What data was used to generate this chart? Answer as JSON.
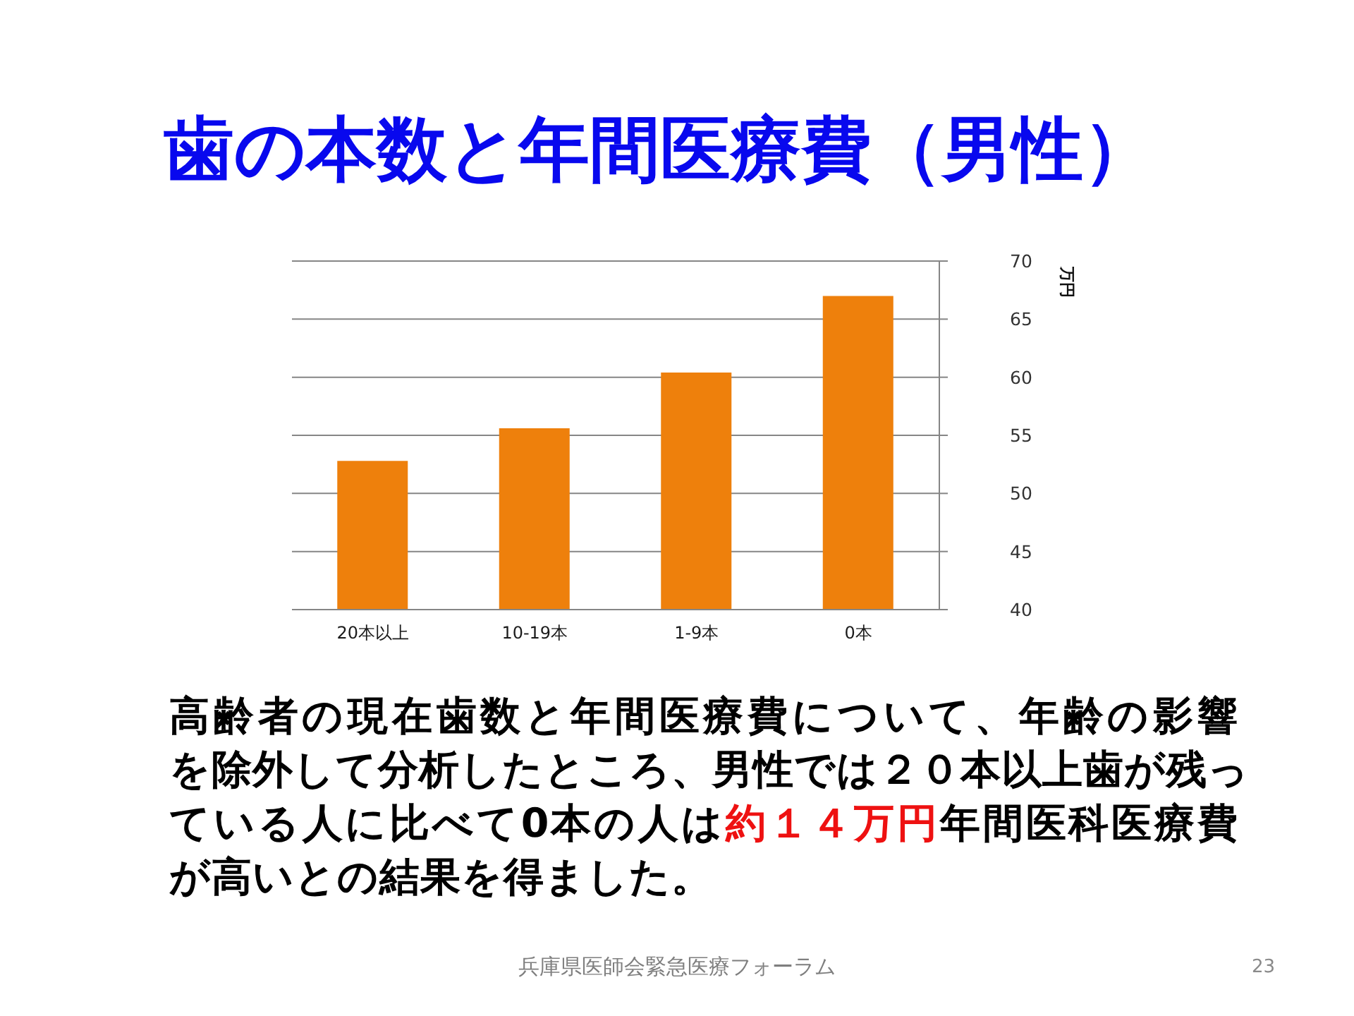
{
  "chart_data": {
    "type": "bar",
    "title": "歯の本数と年間医療費（男性）",
    "ylabel": "万円",
    "categories": [
      "20本以上",
      "10-19本",
      "1-9本",
      "0本"
    ],
    "values": [
      52.8,
      55.6,
      60.4,
      67.0
    ],
    "color": "#ee800c",
    "ylim": [
      40,
      70
    ],
    "yticks": [
      40,
      45,
      50,
      55,
      60,
      65,
      70
    ],
    "grid": "y",
    "annotations": [
      "高齢者の現在歯数と年間医療費について、年齢の影響",
      "を除外して分析したところ、男性では２０本以上歯が残っ",
      "ている人に比べて0本の人は",
      "約１４万円",
      "年間医科医療費",
      "が高いとの結果を得ました。",
      "兵庫県医師会緊急医療フォーラム",
      "23"
    ]
  }
}
